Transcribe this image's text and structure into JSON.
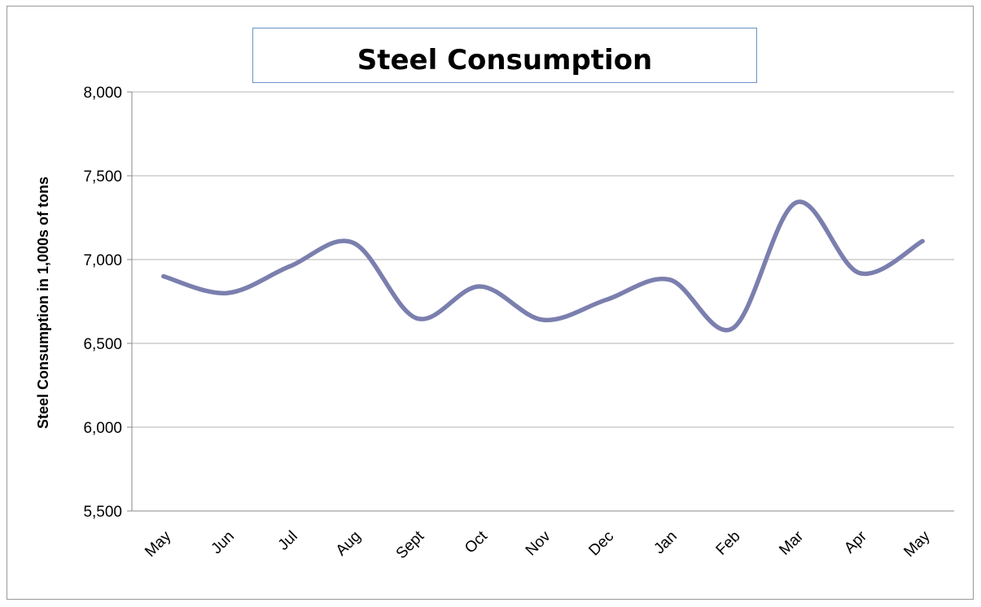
{
  "chart_data": {
    "type": "line",
    "title": "Steel Consumption",
    "xlabel": "",
    "ylabel": "Steel Consumption in 1,000s of tons",
    "categories": [
      "May",
      "Jun",
      "Jul",
      "Aug",
      "Sept",
      "Oct",
      "Nov",
      "Dec",
      "Jan",
      "Feb",
      "Mar",
      "Apr",
      "May"
    ],
    "series": [
      {
        "values": [
          6900,
          6800,
          6960,
          7100,
          6650,
          6840,
          6640,
          6760,
          6880,
          6590,
          7340,
          6920,
          7110
        ]
      }
    ],
    "ylim": [
      5500,
      8000
    ],
    "yticks": [
      5500,
      6000,
      6500,
      7000,
      7500,
      8000
    ],
    "ytick_labels": [
      "5,500",
      "6,000",
      "6,500",
      "7,000",
      "7,500",
      "8,000"
    ],
    "grid": true,
    "line_color": "#7b7fae"
  }
}
